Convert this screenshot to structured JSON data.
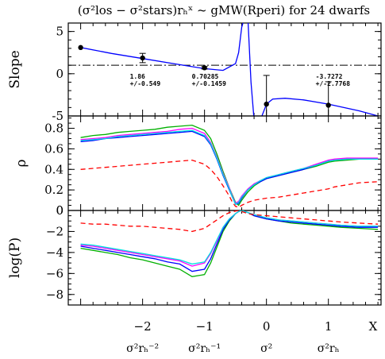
{
  "title": "(σ²los − σ²stars)rₕˣ ~ gMW(Rperi) for 24 dwarfs",
  "chart_data": [
    {
      "panel": "slope",
      "type": "line",
      "ylabel": "Slope",
      "ylim": [
        -5,
        6
      ],
      "yticks": [
        -5,
        0,
        5
      ],
      "reference_line": 1,
      "fit_curve": {
        "color": "#0000ff",
        "x": [
          -3.0,
          -2.5,
          -2.0,
          -1.5,
          -1.0,
          -0.7,
          -0.5,
          -0.45,
          -0.4,
          -0.36,
          -0.3,
          -0.25,
          -0.2,
          -0.1,
          0.0,
          0.1,
          0.3,
          0.6,
          1.0,
          1.5,
          1.8
        ],
        "y": [
          3.1,
          2.4,
          1.8,
          1.2,
          0.6,
          0.4,
          1.2,
          2.5,
          5.5,
          6.5,
          6.5,
          -1.0,
          -5.5,
          -5.5,
          -3.6,
          -3.0,
          -2.9,
          -3.1,
          -3.6,
          -4.4,
          -5.0
        ]
      },
      "points": [
        {
          "x": -3,
          "y": 3.1,
          "err": 0
        },
        {
          "x": -2,
          "y": 1.86,
          "err": 0.549
        },
        {
          "x": -1,
          "y": 0.70285,
          "err": 0.1459
        },
        {
          "x": 0,
          "y": -3.6,
          "err": 3.4
        },
        {
          "x": 1,
          "y": -3.7272,
          "err": 2.7768
        }
      ],
      "annotations": [
        {
          "x": -2,
          "line1": "1.86",
          "line2": "+/-0.549"
        },
        {
          "x": -1,
          "line1": "0.70285",
          "line2": "+/-0.1459"
        },
        {
          "x": 1,
          "line1": "-3.7272",
          "line2": "+/-2.7768"
        }
      ]
    },
    {
      "panel": "rho",
      "type": "line",
      "ylabel": "ρ",
      "ylim": [
        0,
        0.92
      ],
      "yticks": [
        0,
        0.2,
        0.4,
        0.6,
        0.8
      ],
      "ytick_labels": [
        "0",
        "0.2",
        "0.4",
        "0.6",
        "0.8"
      ],
      "x": [
        -3.0,
        -2.8,
        -2.6,
        -2.4,
        -2.2,
        -2.0,
        -1.8,
        -1.6,
        -1.4,
        -1.2,
        -1.0,
        -0.9,
        -0.8,
        -0.7,
        -0.6,
        -0.55,
        -0.5,
        -0.45,
        -0.4,
        -0.3,
        -0.2,
        -0.1,
        0.0,
        0.2,
        0.4,
        0.6,
        0.8,
        1.0,
        1.1,
        1.3,
        1.5,
        1.8
      ],
      "series": [
        {
          "color": "#00b000",
          "dash": false,
          "values": [
            0.71,
            0.73,
            0.74,
            0.76,
            0.77,
            0.78,
            0.79,
            0.81,
            0.82,
            0.83,
            0.78,
            0.7,
            0.55,
            0.38,
            0.22,
            0.15,
            0.08,
            0.05,
            0.1,
            0.18,
            0.24,
            0.28,
            0.31,
            0.34,
            0.37,
            0.4,
            0.43,
            0.47,
            0.48,
            0.49,
            0.5,
            0.5
          ]
        },
        {
          "color": "#ff00ff",
          "dash": false,
          "values": [
            0.69,
            0.7,
            0.71,
            0.73,
            0.74,
            0.75,
            0.76,
            0.77,
            0.79,
            0.8,
            0.75,
            0.66,
            0.52,
            0.36,
            0.22,
            0.14,
            0.07,
            0.09,
            0.14,
            0.21,
            0.26,
            0.29,
            0.32,
            0.35,
            0.38,
            0.41,
            0.45,
            0.49,
            0.5,
            0.51,
            0.51,
            0.51
          ]
        },
        {
          "color": "#0000ff",
          "dash": false,
          "values": [
            0.67,
            0.68,
            0.7,
            0.71,
            0.72,
            0.73,
            0.74,
            0.75,
            0.76,
            0.77,
            0.72,
            0.64,
            0.5,
            0.34,
            0.2,
            0.13,
            0.06,
            0.07,
            0.12,
            0.2,
            0.25,
            0.28,
            0.31,
            0.34,
            0.37,
            0.4,
            0.44,
            0.48,
            0.49,
            0.5,
            0.5,
            0.5
          ]
        },
        {
          "color": "#00e0e0",
          "dash": false,
          "values": [
            0.68,
            0.69,
            0.7,
            0.72,
            0.73,
            0.74,
            0.75,
            0.76,
            0.77,
            0.78,
            0.73,
            0.65,
            0.51,
            0.35,
            0.21,
            0.13,
            0.06,
            0.08,
            0.13,
            0.2,
            0.25,
            0.29,
            0.32,
            0.35,
            0.38,
            0.41,
            0.44,
            0.48,
            0.49,
            0.5,
            0.5,
            0.5
          ]
        },
        {
          "color": "#ff0000",
          "dash": true,
          "values": [
            0.4,
            0.41,
            0.42,
            0.43,
            0.44,
            0.45,
            0.46,
            0.47,
            0.48,
            0.49,
            0.45,
            0.4,
            0.33,
            0.24,
            0.14,
            0.08,
            0.04,
            0.03,
            0.05,
            0.08,
            0.1,
            0.11,
            0.12,
            0.13,
            0.15,
            0.17,
            0.19,
            0.21,
            0.23,
            0.25,
            0.27,
            0.28
          ]
        }
      ]
    },
    {
      "panel": "logP",
      "type": "line",
      "ylabel": "log(P)",
      "ylim": [
        -9,
        0
      ],
      "yticks": [
        -8,
        -6,
        -4,
        -2,
        0
      ],
      "ytick_labels": [
        "−8",
        "−6",
        "−4",
        "−2",
        "0"
      ],
      "x": [
        -3.0,
        -2.8,
        -2.6,
        -2.4,
        -2.2,
        -2.0,
        -1.8,
        -1.6,
        -1.4,
        -1.2,
        -1.0,
        -0.9,
        -0.8,
        -0.7,
        -0.6,
        -0.5,
        -0.45,
        -0.4,
        -0.3,
        -0.2,
        0.0,
        0.2,
        0.4,
        0.6,
        0.8,
        1.0,
        1.2,
        1.5,
        1.8
      ],
      "series": [
        {
          "color": "#00b000",
          "dash": false,
          "values": [
            -3.6,
            -3.8,
            -4.0,
            -4.2,
            -4.5,
            -4.7,
            -5.0,
            -5.3,
            -5.6,
            -6.3,
            -6.1,
            -5.0,
            -3.5,
            -2.0,
            -1.0,
            -0.3,
            -0.1,
            0.0,
            -0.2,
            -0.5,
            -0.8,
            -1.0,
            -1.2,
            -1.3,
            -1.4,
            -1.5,
            -1.6,
            -1.7,
            -1.8
          ]
        },
        {
          "color": "#0000ff",
          "dash": false,
          "values": [
            -3.4,
            -3.6,
            -3.8,
            -4.0,
            -4.2,
            -4.4,
            -4.6,
            -4.9,
            -5.1,
            -5.8,
            -5.6,
            -4.6,
            -3.2,
            -1.8,
            -0.9,
            -0.3,
            -0.1,
            0.0,
            -0.2,
            -0.5,
            -0.8,
            -1.0,
            -1.1,
            -1.2,
            -1.3,
            -1.4,
            -1.5,
            -1.6,
            -1.6
          ]
        },
        {
          "color": "#ff00ff",
          "dash": false,
          "values": [
            -3.3,
            -3.4,
            -3.6,
            -3.8,
            -4.0,
            -4.2,
            -4.4,
            -4.6,
            -4.8,
            -5.3,
            -5.0,
            -4.1,
            -2.9,
            -1.6,
            -0.8,
            -0.3,
            -0.1,
            0.0,
            -0.2,
            -0.4,
            -0.7,
            -0.9,
            -1.0,
            -1.1,
            -1.2,
            -1.3,
            -1.4,
            -1.5,
            -1.5
          ]
        },
        {
          "color": "#00e0e0",
          "dash": false,
          "values": [
            -3.2,
            -3.3,
            -3.5,
            -3.7,
            -3.9,
            -4.1,
            -4.3,
            -4.5,
            -4.7,
            -5.1,
            -4.9,
            -4.0,
            -2.8,
            -1.6,
            -0.8,
            -0.3,
            -0.1,
            0.0,
            -0.2,
            -0.4,
            -0.7,
            -0.9,
            -1.0,
            -1.1,
            -1.2,
            -1.3,
            -1.4,
            -1.5,
            -1.5
          ]
        },
        {
          "color": "#ff0000",
          "dash": true,
          "values": [
            -1.2,
            -1.3,
            -1.3,
            -1.4,
            -1.5,
            -1.5,
            -1.6,
            -1.7,
            -1.8,
            -2.0,
            -1.7,
            -1.3,
            -0.9,
            -0.5,
            -0.2,
            -0.05,
            0.0,
            -0.1,
            -0.3,
            -0.4,
            -0.5,
            -0.6,
            -0.7,
            -0.8,
            -0.9,
            -1.0,
            -1.1,
            -1.2,
            -1.3
          ]
        }
      ]
    }
  ],
  "xaxis": {
    "xlim": [
      -3.2,
      1.85
    ],
    "ticks": [
      -2,
      -1,
      0,
      1
    ],
    "tick_labels": [
      "−2",
      "−1",
      "0",
      "1"
    ],
    "end_label": "X",
    "names": [
      "σ²rₕ⁻²",
      "σ²rₕ⁻¹",
      "σ²",
      "σ²rₕ"
    ]
  }
}
